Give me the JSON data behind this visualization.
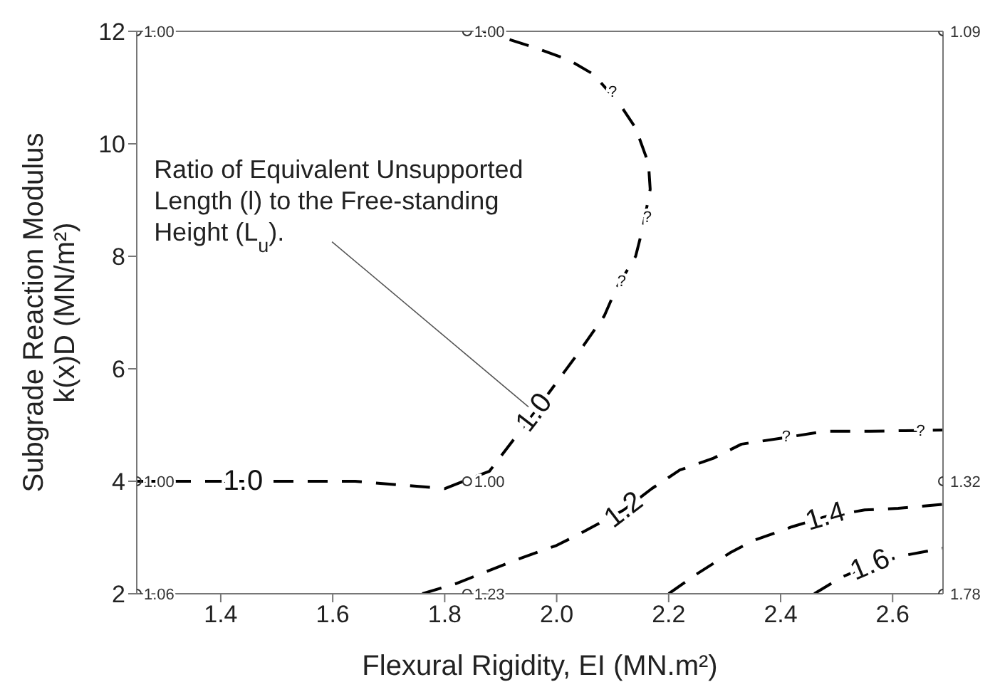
{
  "chart_data": {
    "type": "line",
    "xlabel": "Flexural Rigidity, EI (MN.m²)",
    "ylabel": "Subgrade Reaction Modulus\nk(x)D (MN/m²)",
    "xlim": [
      1.25,
      2.69
    ],
    "ylim": [
      2,
      12
    ],
    "xticks": [
      1.4,
      1.6,
      1.8,
      {
        "value": 2,
        "label": "2.0"
      },
      2.2,
      2.4,
      2.6
    ],
    "yticks": [
      2,
      4,
      6,
      8,
      10,
      12
    ],
    "line_style": "dashed",
    "series": [
      {
        "color": "#000000",
        "x": [
          1.25,
          1.64,
          1.8,
          1.88,
          1.96,
          2.04,
          2.085,
          2.106,
          2.141,
          2.154,
          2.167,
          2.164,
          2.141,
          2.111,
          2.065,
          2.022,
          1.958,
          1.869
        ],
        "values": [
          4.0,
          4.0,
          3.87,
          4.18,
          5.22,
          6.3,
          6.94,
          7.42,
          8.0,
          8.51,
          9.19,
          9.65,
          10.28,
          10.73,
          11.24,
          11.49,
          11.72,
          12.0
        ]
      },
      {
        "color": "#000000",
        "x": [
          1.76,
          1.82,
          1.93,
          2.0,
          2.04,
          2.12,
          2.17,
          2.22,
          2.28,
          2.33,
          2.41,
          2.48,
          2.56,
          2.69
        ],
        "values": [
          2.0,
          2.18,
          2.61,
          2.86,
          3.06,
          3.49,
          3.87,
          4.2,
          4.41,
          4.66,
          4.78,
          4.89,
          4.89,
          4.91
        ]
      },
      {
        "color": "#000000",
        "x": [
          2.2,
          2.25,
          2.31,
          2.35,
          2.42,
          2.48,
          2.55,
          2.61,
          2.69
        ],
        "values": [
          2.0,
          2.35,
          2.73,
          2.94,
          3.19,
          3.37,
          3.49,
          3.52,
          3.59
        ]
      },
      {
        "color": "#000000",
        "x": [
          2.46,
          2.51,
          2.56,
          2.62,
          2.69
        ],
        "values": [
          2.0,
          2.3,
          2.51,
          2.68,
          2.81
        ]
      },
      {
        "type": "scatter",
        "color": "#333333",
        "marker": "circle",
        "x": [
          1.25,
          1.84,
          2.69,
          1.25,
          1.84,
          2.69,
          1.25,
          1.84,
          2.69
        ],
        "values": [
          12,
          12,
          12,
          4,
          4,
          4,
          2,
          2,
          2
        ]
      }
    ],
    "annotations": [
      {
        "text": "Ratio of Equivalent Unsupported Length (l) to the Free-standing Height (L$_{u}$).",
        "x": 1.96,
        "y": 5.22
      },
      {
        "text": "1.0",
        "x": 1.44,
        "y": 4.0
      },
      {
        "text": "1.0",
        "x": 1.96,
        "y": 5.22
      },
      {
        "text": "1.2",
        "x": 2.12,
        "y": 3.49
      },
      {
        "text": "1.4",
        "x": 2.48,
        "y": 3.37
      },
      {
        "text": "1.6",
        "x": 2.56,
        "y": 2.51
      },
      {
        "text": "?",
        "x": 2.1,
        "y": 10.91
      },
      {
        "text": "?",
        "x": 2.162,
        "y": 8.68
      },
      {
        "text": "?",
        "x": 2.116,
        "y": 7.54
      },
      {
        "text": "?",
        "x": 2.41,
        "y": 4.78
      },
      {
        "text": "?",
        "x": 2.65,
        "y": 4.89
      },
      {
        "text": "1.00",
        "x": 1.25,
        "y": 12
      },
      {
        "text": "1.00",
        "x": 1.84,
        "y": 12
      },
      {
        "text": "1.09",
        "x": 2.69,
        "y": 12
      },
      {
        "text": "1.00",
        "x": 1.25,
        "y": 4
      },
      {
        "text": "1.00",
        "x": 1.84,
        "y": 4
      },
      {
        "text": "1.32",
        "x": 2.69,
        "y": 4
      },
      {
        "text": "1.06",
        "x": 1.25,
        "y": 2
      },
      {
        "text": "1.23",
        "x": 1.84,
        "y": 2
      },
      {
        "text": "1.78",
        "x": 2.69,
        "y": 2
      }
    ]
  }
}
